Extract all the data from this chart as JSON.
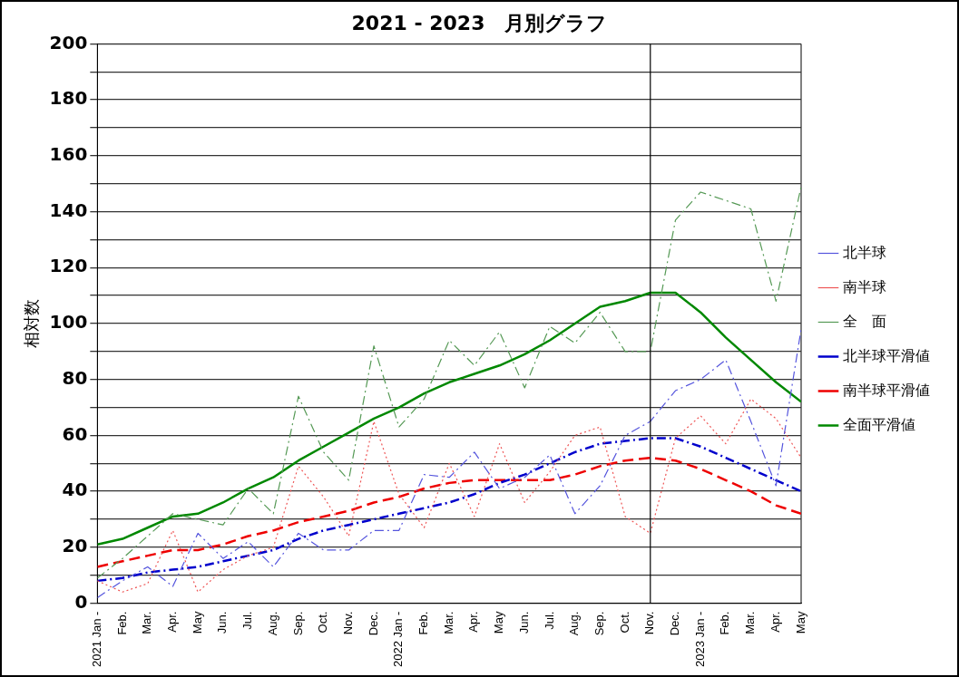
{
  "chart_data": {
    "type": "line",
    "title": "2021 - 2023　月別グラフ",
    "ylabel": "相対数",
    "x": [
      "2021-01",
      "2021-02",
      "2021-03",
      "2021-04",
      "2021-05",
      "2021-06",
      "2021-07",
      "2021-08",
      "2021-09",
      "2021-10",
      "2021-11",
      "2021-12",
      "2022-01",
      "2022-02",
      "2022-03",
      "2022-04",
      "2022-05",
      "2022-06",
      "2022-07",
      "2022-08",
      "2022-09",
      "2022-10",
      "2022-11",
      "2022-12",
      "2023-01",
      "2023-02",
      "2023-03",
      "2023-04",
      "2023-05"
    ],
    "xlim": [
      "2021-01",
      "2023-05"
    ],
    "xticks": [
      {
        "value": "2021-01",
        "label": "2021 Jan -"
      },
      {
        "value": "2021-02",
        "label": "Feb."
      },
      {
        "value": "2021-03",
        "label": "Mar."
      },
      {
        "value": "2021-04",
        "label": "Apr."
      },
      {
        "value": "2021-05",
        "label": "May"
      },
      {
        "value": "2021-06",
        "label": "Jun."
      },
      {
        "value": "2021-07",
        "label": "Jul."
      },
      {
        "value": "2021-08",
        "label": "Aug."
      },
      {
        "value": "2021-09",
        "label": "Sep."
      },
      {
        "value": "2021-10",
        "label": "Oct."
      },
      {
        "value": "2021-11",
        "label": "Nov."
      },
      {
        "value": "2021-12",
        "label": "Dec."
      },
      {
        "value": "2022-01",
        "label": "2022 Jan -"
      },
      {
        "value": "2022-02",
        "label": "Feb."
      },
      {
        "value": "2022-03",
        "label": "Mar."
      },
      {
        "value": "2022-04",
        "label": "Apr."
      },
      {
        "value": "2022-05",
        "label": "May"
      },
      {
        "value": "2022-06",
        "label": "Jun."
      },
      {
        "value": "2022-07",
        "label": "Jul."
      },
      {
        "value": "2022-08",
        "label": "Aug."
      },
      {
        "value": "2022-09",
        "label": "Sep."
      },
      {
        "value": "2022-10",
        "label": "Oct."
      },
      {
        "value": "2022-11",
        "label": "Nov."
      },
      {
        "value": "2022-12",
        "label": "Dec."
      },
      {
        "value": "2023-01",
        "label": "2023 Jan -"
      },
      {
        "value": "2023-02",
        "label": "Feb."
      },
      {
        "value": "2023-03",
        "label": "Mar."
      },
      {
        "value": "2023-04",
        "label": "Apr."
      },
      {
        "value": "2023-05",
        "label": "May"
      }
    ],
    "ylim": [
      0,
      200
    ],
    "yticks": [
      0,
      {
        "value": 10,
        "label": null
      },
      20,
      {
        "value": 30,
        "label": null
      },
      40,
      {
        "value": 50,
        "label": null
      },
      60,
      {
        "value": 70,
        "label": null
      },
      80,
      {
        "value": 90,
        "label": null
      },
      100,
      {
        "value": 110,
        "label": null
      },
      120,
      {
        "value": 130,
        "label": null
      },
      140,
      {
        "value": 150,
        "label": null
      },
      160,
      {
        "value": 170,
        "label": null
      },
      180,
      {
        "value": 190,
        "label": null
      },
      200
    ],
    "grid": "y",
    "legend": "right",
    "marker": "none",
    "ref_lines": [
      {
        "axis": "x",
        "value": "2022-11",
        "color": "#000000"
      }
    ],
    "series": [
      {
        "name": "北半球",
        "color": "#5555dd",
        "line_style": "dashdot",
        "values": [
          2,
          8,
          13,
          6,
          25,
          16,
          22,
          13,
          25,
          19,
          19,
          26,
          26,
          46,
          45,
          54,
          41,
          45,
          53,
          32,
          42,
          60,
          65,
          76,
          80,
          87,
          65,
          42,
          98
        ]
      },
      {
        "name": "南半球",
        "color": "#ee5555",
        "line_style": "dotted",
        "values": [
          8,
          4,
          7,
          26,
          4,
          12,
          17,
          20,
          49,
          38,
          24,
          65,
          39,
          27,
          50,
          31,
          57,
          36,
          47,
          60,
          63,
          31,
          25,
          59,
          67,
          57,
          73,
          66,
          52
        ]
      },
      {
        "name": "全　面",
        "color": "#559955",
        "line_style": "dashdot",
        "values": [
          9,
          16,
          24,
          32,
          30,
          28,
          41,
          32,
          74,
          54,
          44,
          92,
          63,
          73,
          94,
          85,
          97,
          77,
          99,
          93,
          104,
          90,
          90,
          137,
          147,
          144,
          141,
          108,
          149
        ]
      },
      {
        "name": "北半球平滑値",
        "color": "#0000cc",
        "line_style": "dashdot",
        "values": [
          8,
          9,
          11,
          12,
          13,
          15,
          17,
          19,
          23,
          26,
          28,
          30,
          32,
          34,
          36,
          39,
          43,
          46,
          50,
          54,
          57,
          58,
          59,
          59,
          56,
          52,
          48,
          44,
          40
        ]
      },
      {
        "name": "南半球平滑値",
        "color": "#ee0000",
        "line_style": "dashed",
        "values": [
          13,
          15,
          17,
          19,
          19,
          21,
          24,
          26,
          29,
          31,
          33,
          36,
          38,
          41,
          43,
          44,
          44,
          44,
          44,
          46,
          49,
          51,
          52,
          51,
          48,
          44,
          40,
          35,
          32
        ]
      },
      {
        "name": "全面平滑値",
        "color": "#008800",
        "line_style": "solid",
        "values": [
          21,
          23,
          27,
          31,
          32,
          36,
          41,
          45,
          51,
          56,
          61,
          66,
          70,
          75,
          79,
          82,
          85,
          89,
          94,
          100,
          106,
          108,
          111,
          111,
          104,
          95,
          87,
          79,
          72
        ]
      }
    ]
  }
}
